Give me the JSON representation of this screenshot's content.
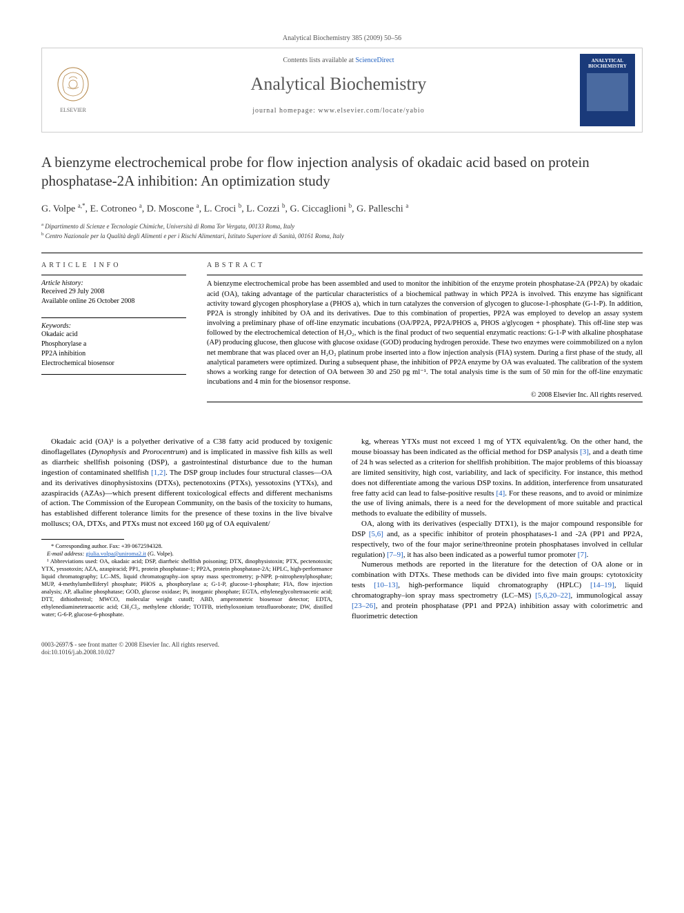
{
  "header": {
    "citation": "Analytical Biochemistry 385 (2009) 50–56",
    "contents_prefix": "Contents lists available at ",
    "contents_link": "ScienceDirect",
    "journal_name": "Analytical Biochemistry",
    "homepage_label": "journal homepage: www.elsevier.com/locate/yabio",
    "cover_title": "ANALYTICAL BIOCHEMISTRY"
  },
  "article": {
    "title": "A bienzyme electrochemical probe for flow injection analysis of okadaic acid based on protein phosphatase-2A inhibition: An optimization study",
    "authors_html": "G. Volpe <sup>a,*</sup>, E. Cotroneo <sup>a</sup>, D. Moscone <sup>a</sup>, L. Croci <sup>b</sup>, L. Cozzi <sup>b</sup>, G. Ciccaglioni <sup>b</sup>, G. Palleschi <sup>a</sup>",
    "affiliations": [
      {
        "sup": "a",
        "text": "Dipartimento di Scienze e Tecnologie Chimiche, Università di Roma Tor Vergata, 00133 Roma, Italy"
      },
      {
        "sup": "b",
        "text": "Centro Nazionale per la Qualità degli Alimenti e per i Rischi Alimentari, Istituto Superiore di Sanità, 00161 Roma, Italy"
      }
    ]
  },
  "info": {
    "heading": "ARTICLE INFO",
    "history_label": "Article history:",
    "received": "Received 29 July 2008",
    "online": "Available online 26 October 2008",
    "keywords_label": "Keywords:",
    "keywords": [
      "Okadaic acid",
      "Phosphorylase a",
      "PP2A inhibition",
      "Electrochemical biosensor"
    ]
  },
  "abstract": {
    "heading": "ABSTRACT",
    "text": "A bienzyme electrochemical probe has been assembled and used to monitor the inhibition of the enzyme protein phosphatase-2A (PP2A) by okadaic acid (OA), taking advantage of the particular characteristics of a biochemical pathway in which PP2A is involved. This enzyme has significant activity toward glycogen phosphorylase a (PHOS a), which in turn catalyzes the conversion of glycogen to glucose-1-phosphate (G-1-P). In addition, PP2A is strongly inhibited by OA and its derivatives. Due to this combination of properties, PP2A was employed to develop an assay system involving a preliminary phase of off-line enzymatic incubations (OA/PP2A, PP2A/PHOS a, PHOS a/glycogen + phosphate). This off-line step was followed by the electrochemical detection of H₂O₂, which is the final product of two sequential enzymatic reactions: G-1-P with alkaline phosphatase (AP) producing glucose, then glucose with glucose oxidase (GOD) producing hydrogen peroxide. These two enzymes were coimmobilized on a nylon net membrane that was placed over an H₂O₂ platinum probe inserted into a flow injection analysis (FIA) system. During a first phase of the study, all analytical parameters were optimized. During a subsequent phase, the inhibition of PP2A enzyme by OA was evaluated. The calibration of the system shows a working range for detection of OA between 30 and 250 pg ml⁻¹. The total analysis time is the sum of 50 min for the off-line enzymatic incubations and 4 min for the biosensor response.",
    "copyright": "© 2008 Elsevier Inc. All rights reserved."
  },
  "body": {
    "p1": "Okadaic acid (OA)¹ is a polyether derivative of a C38 fatty acid produced by toxigenic dinoflagellates (Dynophysis and Prorocentrum) and is implicated in massive fish kills as well as diarrheic shellfish poisoning (DSP), a gastrointestinal disturbance due to the human ingestion of contaminated shellfish [1,2]. The DSP group includes four structural classes—OA and its derivatives dinophysistoxins (DTXs), pectenotoxins (PTXs), yessotoxins (YTXs), and azaspiracids (AZAs)—which present different toxicological effects and different mechanisms of action. The Commission of the European Community, on the basis of the toxicity to humans, has established different tolerance limits for the presence of these toxins in the live bivalve molluscs; OA, DTXs, and PTXs must not exceed 160 μg of OA equivalent/",
    "p2": "kg, whereas YTXs must not exceed 1 mg of YTX equivalent/kg. On the other hand, the mouse bioassay has been indicated as the official method for DSP analysis [3], and a death time of 24 h was selected as a criterion for shellfish prohibition. The major problems of this bioassay are limited sensitivity, high cost, variability, and lack of specificity. For instance, this method does not differentiate among the various DSP toxins. In addition, interference from unsaturated free fatty acid can lead to false-positive results [4]. For these reasons, and to avoid or minimize the use of living animals, there is a need for the development of more suitable and practical methods to evaluate the edibility of mussels.",
    "p3": "OA, along with its derivatives (especially DTX1), is the major compound responsible for DSP [5,6] and, as a specific inhibitor of protein phosphatases-1 and -2A (PP1 and PP2A, respectively, two of the four major serine/threonine protein phosphatases involved in cellular regulation) [7–9], it has also been indicated as a powerful tumor promoter [7].",
    "p4": "Numerous methods are reported in the literature for the detection of OA alone or in combination with DTXs. These methods can be divided into five main groups: cytotoxicity tests [10–13], high-performance liquid chromatography (HPLC) [14–19], liquid chromatography–ion spray mass spectrometry (LC–MS) [5,6,20–22], immunological assay [23–26], and protein phosphatase (PP1 and PP2A) inhibition assay with colorimetric and fluorimetric detection"
  },
  "footnotes": {
    "corresponding": "* Corresponding author. Fax: +39 0672594328.",
    "email_label": "E-mail address: ",
    "email": "giulia.volpa@uniroma2.it",
    "email_suffix": " (G. Volpe).",
    "abbrev": "¹ Abbreviations used: OA, okadaic acid; DSP, diarrheic shellfish poisoning; DTX, dinophysistoxin; PTX, pectenotoxin; YTX, yessotoxin; AZA, azaspiracid; PP1, protein phosphatase-1; PP2A, protein phosphatase-2A; HPLC, high-performance liquid chromatography; LC–MS, liquid chromatography–ion spray mass spectrometry; p-NPP, p-nitrophenylphosphate; MUP, 4-methylumbelliferyl phosphate; PHOS a, phosphorylase a; G-1-P, glucose-1-phosphate; FIA, flow injection analysis; AP, alkaline phosphatase; GOD, glucose oxidase; Pi, inorganic phosphate; EGTA, ethyleneglycoltetraacetic acid; DTT, dithiothreitol; MWCO, molecular weight cutoff; ABD, amperometric biosensor detector; EDTA, ethylenediaminetetraacetic acid; CH₂Cl₂, methylene chloride; TOTFB, triethyloxonium tetrafluoroborate; DW, distilled water; G-6-P, glucose-6-phosphate."
  },
  "footer": {
    "line1": "0003-2697/$ - see front matter © 2008 Elsevier Inc. All rights reserved.",
    "line2": "doi:10.1016/j.ab.2008.10.027"
  },
  "colors": {
    "link": "#2060c0",
    "text": "#000000",
    "muted": "#555555",
    "border": "#cccccc",
    "cover_bg": "#1a3a7a"
  }
}
